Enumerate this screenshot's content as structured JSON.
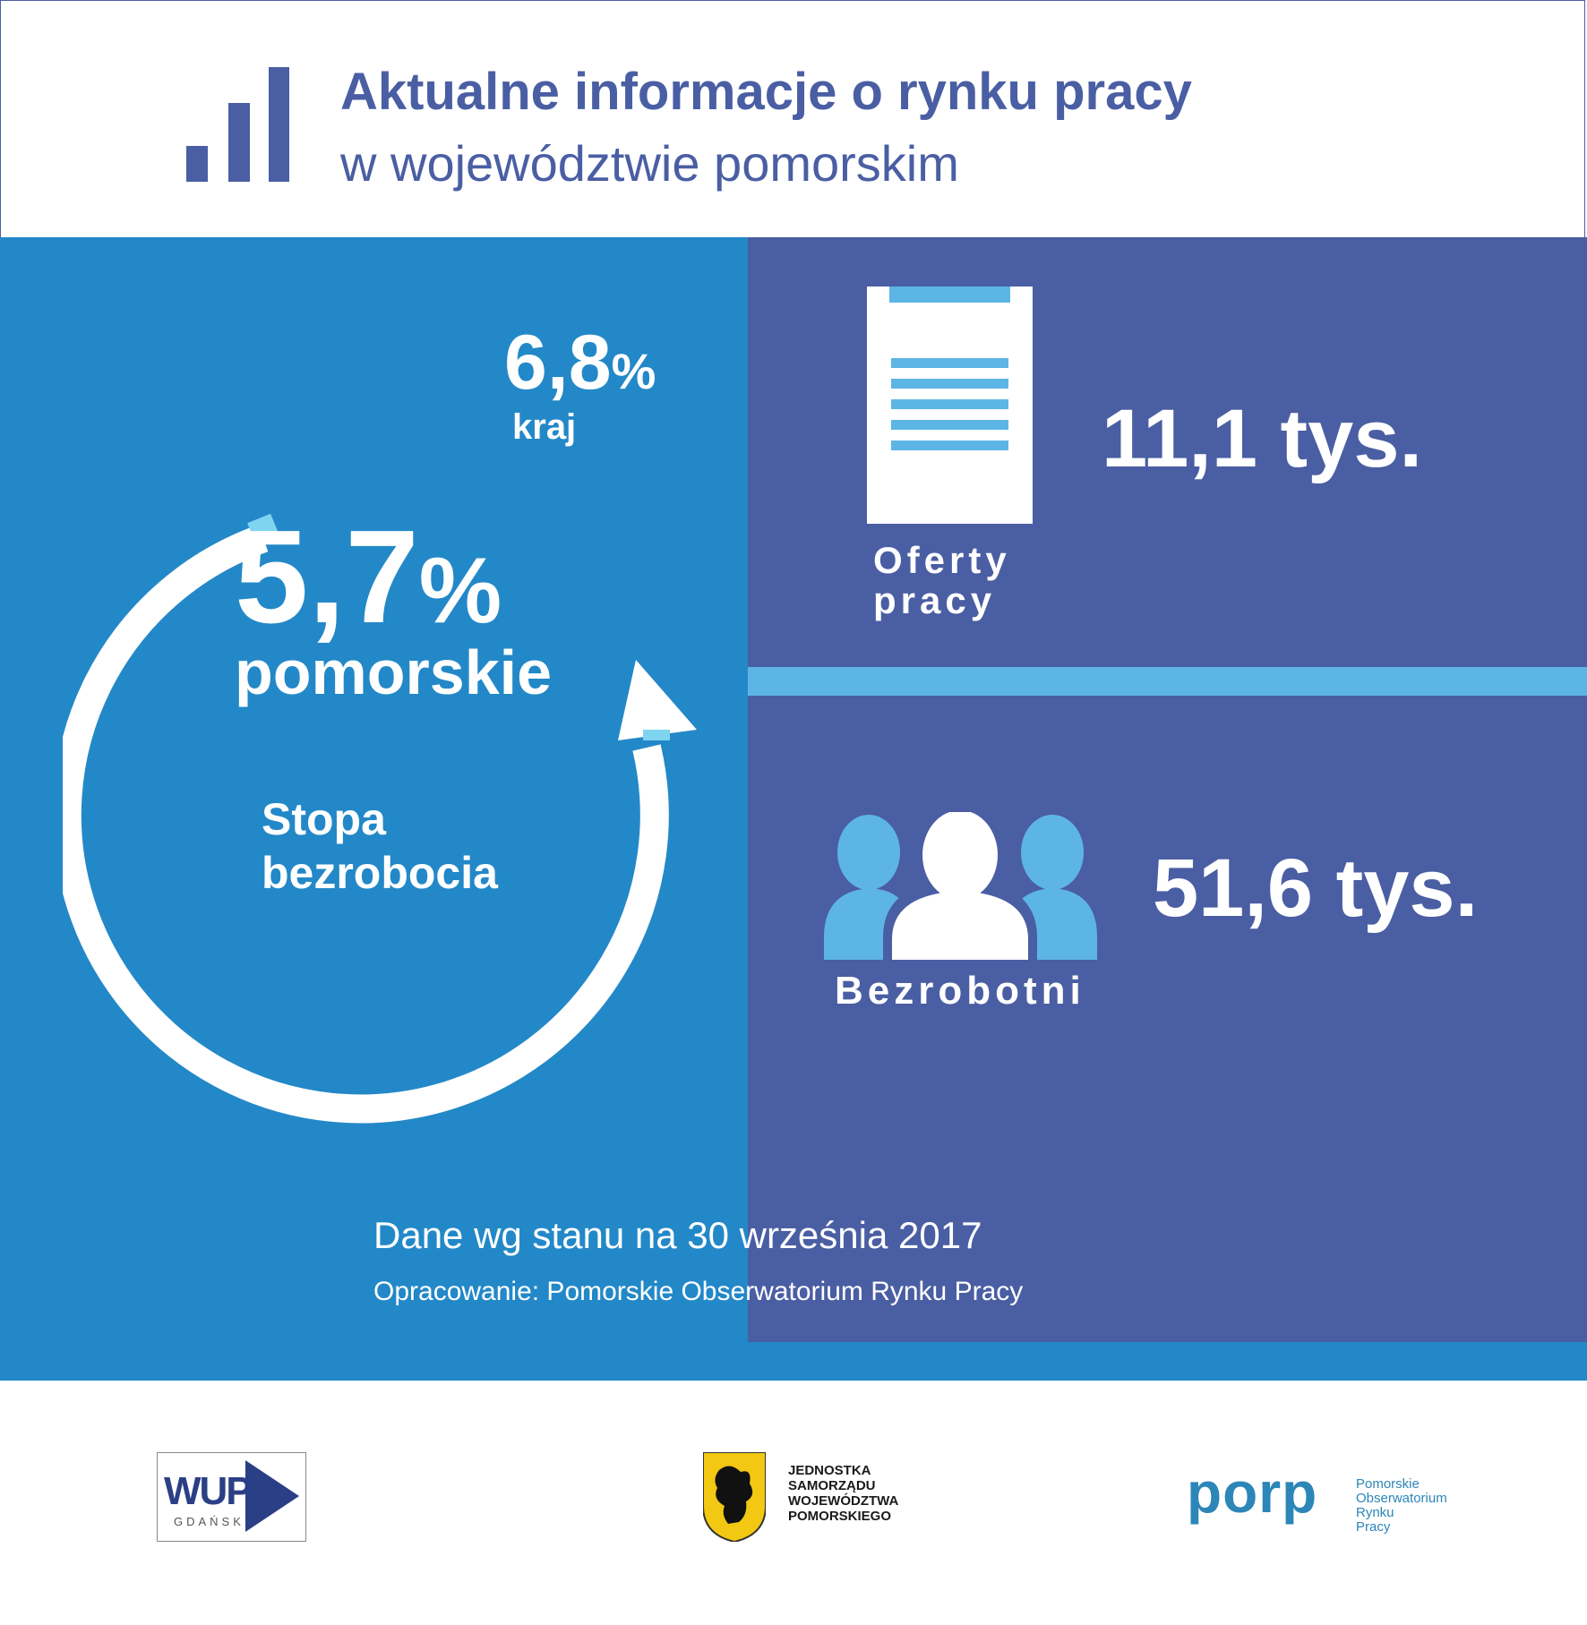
{
  "header": {
    "title": "Aktualne informacje o rynku pracy",
    "subtitle": "w województwie pomorskim",
    "icon": "bar-chart-icon"
  },
  "unemployment": {
    "value": "5,7",
    "unit": "%",
    "region": "pomorskie",
    "national_value": "6,8",
    "national_unit": "%",
    "national_label": "kraj",
    "label_line1": "Stopa",
    "label_line2": "bezrobocia"
  },
  "job_offers": {
    "value": "11,1 tys.",
    "label_line1": "Oferty",
    "label_line2": "pracy",
    "icon": "document-icon"
  },
  "unemployed": {
    "value": "51,6 tys.",
    "label": "Bezrobotni",
    "icon": "people-icon"
  },
  "notes": {
    "date": "Dane wg stanu na 30 września 2017",
    "source": "Opracowanie: Pomorskie Obserwatorium Rynku Pracy"
  },
  "logos": {
    "wup": {
      "main": "WUP",
      "sub": "GDAŃSK"
    },
    "jsww": {
      "text": "JEDNOSTKA\nSAMORZĄDU\nWOJEWÓDZTWA\nPOMORSKIEGO",
      "icon": "griffin-coat-of-arms-icon"
    },
    "porp": {
      "mark": "porp",
      "line1": "Pomorskie",
      "line2": "Obserwatorium",
      "line3": "Rynku",
      "line4": "Pracy"
    }
  },
  "colors": {
    "navy": "#4a5ea3",
    "blue": "#2388c8",
    "light_blue": "#5db5e6",
    "white": "#ffffff"
  }
}
